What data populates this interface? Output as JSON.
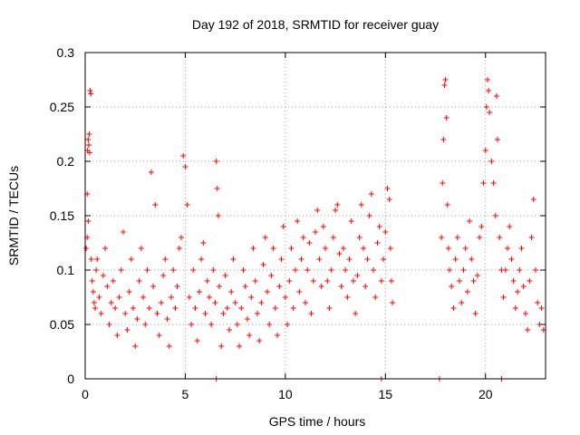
{
  "chart_data": {
    "type": "scatter",
    "title": "Day 192 of 2018, SRMTID for receiver guay",
    "xlabel": "GPS time / hours",
    "ylabel": "SRMTID / TECUs",
    "xlim": [
      0,
      23
    ],
    "ylim": [
      0,
      0.3
    ],
    "x_ticks": [
      0,
      5,
      10,
      15,
      20
    ],
    "x_tick_labels": [
      "0",
      "5",
      "10",
      "15",
      "20"
    ],
    "y_ticks": [
      0,
      0.05,
      0.1,
      0.15,
      0.2,
      0.25,
      0.3
    ],
    "y_tick_labels": [
      "0",
      "0.05",
      "0.1",
      "0.15",
      "0.2",
      "0.25",
      "0.3"
    ],
    "grid": true,
    "legend": "none",
    "marker": "+",
    "series": [
      {
        "name": "SRMTID",
        "color": "#ff0000",
        "points": [
          [
            0.05,
            0.12
          ],
          [
            0.1,
            0.17
          ],
          [
            0.12,
            0.21
          ],
          [
            0.15,
            0.22
          ],
          [
            0.18,
            0.215
          ],
          [
            0.2,
            0.225
          ],
          [
            0.22,
            0.208
          ],
          [
            0.25,
            0.265
          ],
          [
            0.28,
            0.262
          ],
          [
            0.1,
            0.13
          ],
          [
            0.15,
            0.145
          ],
          [
            0.3,
            0.11
          ],
          [
            0.35,
            0.09
          ],
          [
            0.4,
            0.08
          ],
          [
            0.45,
            0.07
          ],
          [
            0.5,
            0.065
          ],
          [
            0.55,
            0.1
          ],
          [
            0.6,
            0.11
          ],
          [
            0.7,
            0.075
          ],
          [
            0.8,
            0.06
          ],
          [
            0.9,
            0.095
          ],
          [
            1.0,
            0.12
          ],
          [
            1.1,
            0.085
          ],
          [
            1.2,
            0.05
          ],
          [
            1.3,
            0.07
          ],
          [
            1.4,
            0.09
          ],
          [
            1.5,
            0.065
          ],
          [
            1.6,
            0.04
          ],
          [
            1.7,
            0.075
          ],
          [
            1.8,
            0.1
          ],
          [
            1.9,
            0.135
          ],
          [
            2.0,
            0.06
          ],
          [
            2.1,
            0.045
          ],
          [
            2.2,
            0.08
          ],
          [
            2.3,
            0.11
          ],
          [
            2.4,
            0.065
          ],
          [
            2.5,
            0.03
          ],
          [
            2.6,
            0.055
          ],
          [
            2.7,
            0.09
          ],
          [
            2.8,
            0.12
          ],
          [
            2.9,
            0.075
          ],
          [
            3.0,
            0.05
          ],
          [
            3.1,
            0.1
          ],
          [
            3.2,
            0.065
          ],
          [
            3.3,
            0.19
          ],
          [
            3.4,
            0.085
          ],
          [
            3.5,
            0.16
          ],
          [
            3.6,
            0.06
          ],
          [
            3.7,
            0.04
          ],
          [
            3.8,
            0.07
          ],
          [
            3.9,
            0.095
          ],
          [
            4.0,
            0.11
          ],
          [
            4.1,
            0.055
          ],
          [
            4.2,
            0.03
          ],
          [
            4.3,
            0.075
          ],
          [
            4.4,
            0.1
          ],
          [
            4.5,
            0.065
          ],
          [
            4.6,
            0.085
          ],
          [
            4.7,
            0.12
          ],
          [
            4.8,
            0.13
          ],
          [
            4.9,
            0.205
          ],
          [
            5.0,
            0.195
          ],
          [
            5.1,
            0.16
          ],
          [
            5.2,
            0.075
          ],
          [
            5.3,
            0.05
          ],
          [
            5.4,
            0.1
          ],
          [
            5.5,
            0.065
          ],
          [
            5.6,
            0.035
          ],
          [
            5.7,
            0.08
          ],
          [
            5.8,
            0.11
          ],
          [
            5.9,
            0.125
          ],
          [
            6.0,
            0.06
          ],
          [
            6.1,
            0.09
          ],
          [
            6.2,
            0.075
          ],
          [
            6.3,
            0.05
          ],
          [
            6.4,
            0.1
          ],
          [
            6.5,
            0.07
          ],
          [
            6.55,
            0.2
          ],
          [
            6.6,
            0.175
          ],
          [
            6.65,
            0.15
          ],
          [
            6.7,
            0.085
          ],
          [
            6.8,
            0.03
          ],
          [
            6.9,
            0.06
          ],
          [
            7.0,
            0.095
          ],
          [
            7.1,
            0.065
          ],
          [
            7.2,
            0.045
          ],
          [
            7.3,
            0.08
          ],
          [
            7.4,
            0.11
          ],
          [
            7.5,
            0.07
          ],
          [
            7.6,
            0.05
          ],
          [
            7.7,
            0.03
          ],
          [
            7.8,
            0.065
          ],
          [
            7.9,
            0.1
          ],
          [
            8.0,
            0.085
          ],
          [
            8.1,
            0.055
          ],
          [
            8.2,
            0.04
          ],
          [
            8.3,
            0.075
          ],
          [
            8.4,
            0.12
          ],
          [
            8.5,
            0.09
          ],
          [
            8.6,
            0.06
          ],
          [
            8.7,
            0.035
          ],
          [
            8.8,
            0.07
          ],
          [
            8.9,
            0.105
          ],
          [
            9.0,
            0.13
          ],
          [
            9.1,
            0.08
          ],
          [
            9.2,
            0.05
          ],
          [
            9.3,
            0.095
          ],
          [
            9.4,
            0.12
          ],
          [
            9.5,
            0.065
          ],
          [
            9.6,
            0.04
          ],
          [
            9.7,
            0.085
          ],
          [
            9.8,
            0.11
          ],
          [
            9.9,
            0.14
          ],
          [
            10.0,
            0.075
          ],
          [
            10.1,
            0.05
          ],
          [
            10.2,
            0.09
          ],
          [
            10.3,
            0.12
          ],
          [
            10.4,
            0.065
          ],
          [
            10.5,
            0.1
          ],
          [
            10.6,
            0.145
          ],
          [
            10.7,
            0.08
          ],
          [
            10.8,
            0.11
          ],
          [
            10.9,
            0.13
          ],
          [
            11.0,
            0.07
          ],
          [
            11.1,
            0.1
          ],
          [
            11.2,
            0.125
          ],
          [
            11.3,
            0.06
          ],
          [
            11.4,
            0.09
          ],
          [
            11.5,
            0.135
          ],
          [
            11.6,
            0.155
          ],
          [
            11.7,
            0.11
          ],
          [
            11.8,
            0.085
          ],
          [
            11.9,
            0.14
          ],
          [
            12.0,
            0.12
          ],
          [
            12.1,
            0.09
          ],
          [
            12.2,
            0.065
          ],
          [
            12.3,
            0.1
          ],
          [
            12.4,
            0.13
          ],
          [
            12.5,
            0.155
          ],
          [
            12.6,
            0.16
          ],
          [
            12.7,
            0.115
          ],
          [
            12.8,
            0.085
          ],
          [
            12.9,
            0.12
          ],
          [
            13.0,
            0.1
          ],
          [
            13.1,
            0.075
          ],
          [
            13.2,
            0.11
          ],
          [
            13.3,
            0.145
          ],
          [
            13.4,
            0.09
          ],
          [
            13.5,
            0.06
          ],
          [
            13.6,
            0.095
          ],
          [
            13.7,
            0.13
          ],
          [
            13.8,
            0.16
          ],
          [
            13.9,
            0.12
          ],
          [
            14.0,
            0.085
          ],
          [
            14.1,
            0.11
          ],
          [
            14.2,
            0.15
          ],
          [
            14.3,
            0.17
          ],
          [
            14.4,
            0.1
          ],
          [
            14.5,
            0.075
          ],
          [
            14.6,
            0.125
          ],
          [
            14.7,
            0.14
          ],
          [
            14.8,
            0.09
          ],
          [
            14.9,
            0.11
          ],
          [
            15.0,
            0.135
          ],
          [
            15.1,
            0.175
          ],
          [
            15.2,
            0.165
          ],
          [
            15.25,
            0.12
          ],
          [
            15.3,
            0.09
          ],
          [
            15.35,
            0.07
          ],
          [
            6.55,
            0.0
          ],
          [
            14.8,
            0.0
          ],
          [
            17.7,
            0.0
          ],
          [
            20.8,
            0.0
          ],
          [
            17.8,
            0.13
          ],
          [
            17.85,
            0.18
          ],
          [
            17.9,
            0.22
          ],
          [
            17.95,
            0.27
          ],
          [
            18.0,
            0.275
          ],
          [
            18.05,
            0.24
          ],
          [
            18.1,
            0.16
          ],
          [
            18.15,
            0.12
          ],
          [
            18.2,
            0.1
          ],
          [
            18.3,
            0.085
          ],
          [
            18.4,
            0.065
          ],
          [
            18.5,
            0.11
          ],
          [
            18.6,
            0.13
          ],
          [
            18.7,
            0.09
          ],
          [
            18.8,
            0.07
          ],
          [
            18.9,
            0.1
          ],
          [
            19.0,
            0.12
          ],
          [
            19.1,
            0.08
          ],
          [
            19.2,
            0.145
          ],
          [
            19.3,
            0.11
          ],
          [
            19.4,
            0.09
          ],
          [
            19.5,
            0.06
          ],
          [
            19.6,
            0.095
          ],
          [
            19.7,
            0.13
          ],
          [
            19.8,
            0.14
          ],
          [
            19.9,
            0.18
          ],
          [
            20.0,
            0.21
          ],
          [
            20.05,
            0.25
          ],
          [
            20.1,
            0.275
          ],
          [
            20.15,
            0.265
          ],
          [
            20.2,
            0.245
          ],
          [
            20.3,
            0.2
          ],
          [
            20.4,
            0.18
          ],
          [
            20.5,
            0.15
          ],
          [
            20.55,
            0.26
          ],
          [
            20.6,
            0.22
          ],
          [
            20.7,
            0.13
          ],
          [
            20.8,
            0.1
          ],
          [
            20.9,
            0.075
          ],
          [
            21.0,
            0.1
          ],
          [
            21.1,
            0.12
          ],
          [
            21.2,
            0.14
          ],
          [
            21.3,
            0.11
          ],
          [
            21.4,
            0.09
          ],
          [
            21.5,
            0.065
          ],
          [
            21.6,
            0.08
          ],
          [
            21.7,
            0.1
          ],
          [
            21.8,
            0.12
          ],
          [
            21.9,
            0.085
          ],
          [
            22.0,
            0.06
          ],
          [
            22.1,
            0.045
          ],
          [
            22.2,
            0.09
          ],
          [
            22.3,
            0.13
          ],
          [
            22.4,
            0.165
          ],
          [
            22.5,
            0.1
          ],
          [
            22.6,
            0.07
          ],
          [
            22.7,
            0.05
          ],
          [
            22.8,
            0.065
          ],
          [
            22.9,
            0.045
          ]
        ]
      }
    ]
  }
}
